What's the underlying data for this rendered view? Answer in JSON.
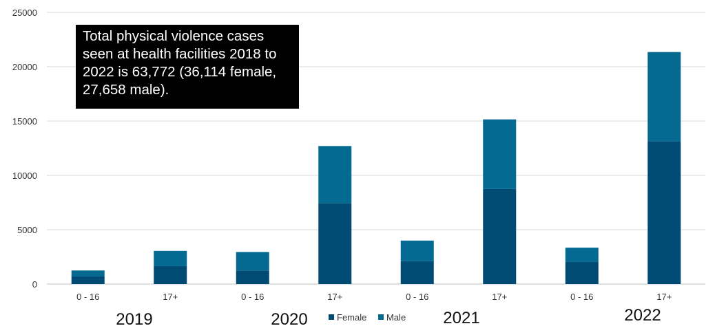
{
  "chart_data": {
    "type": "bar",
    "stacked": true,
    "categories": [
      "0 - 16",
      "17+",
      "0 - 16",
      "17+",
      "0 - 16",
      "17+",
      "0 - 16",
      "17+"
    ],
    "groups": [
      "2019",
      "2020",
      "2021",
      "2022"
    ],
    "series": [
      {
        "name": "Female",
        "values": [
          700,
          1650,
          1250,
          7450,
          2100,
          8750,
          2050,
          13150
        ]
      },
      {
        "name": "Male",
        "values": [
          550,
          1400,
          1700,
          5250,
          1900,
          6400,
          1300,
          8200
        ]
      }
    ],
    "ylim": [
      0,
      25000
    ],
    "yticks": [
      0,
      5000,
      10000,
      15000,
      20000,
      25000
    ],
    "grid": true,
    "legend_position": "bottom",
    "colors": {
      "Female": "#004b73",
      "Male": "#046a92"
    },
    "annotation": "Total physical violence cases seen at health facilities 2018 to 2022 is 63,772 (36,114 female, 27,658 male)."
  }
}
